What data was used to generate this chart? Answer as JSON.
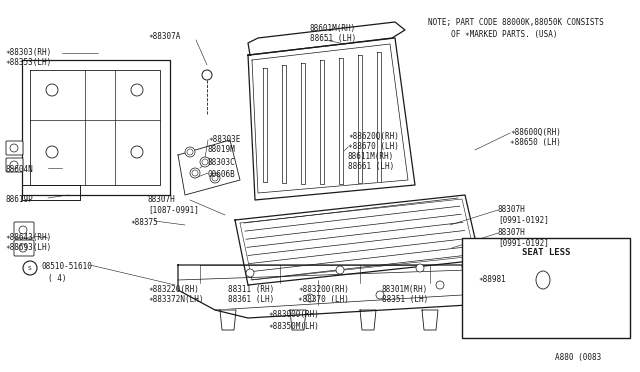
{
  "bg_color": "#ffffff",
  "line_color": "#1a1a1a",
  "text_color": "#1a1a1a",
  "fig_width": 6.4,
  "fig_height": 3.72,
  "dpi": 100,
  "note_line1": "NOTE; PART CODE 88000K,88050K CONSISTS",
  "note_line2": "     OF ∗MARKED PARTS. (USA)",
  "diagram_id": "A880 (0083",
  "seat_less_label": "SEAT LESS"
}
